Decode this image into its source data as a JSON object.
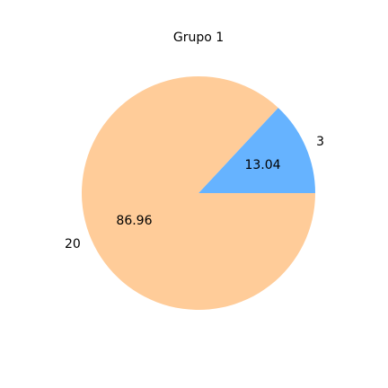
{
  "chart_data": {
    "type": "pie",
    "title": "Grupo 1",
    "categories": [
      "3",
      "20"
    ],
    "values": [
      3,
      20
    ],
    "percent_labels": [
      "13.04",
      "86.96"
    ],
    "colors": [
      "#66b3ff",
      "#ffcc99"
    ],
    "start_angle_deg": 0,
    "direction": "counterclockwise"
  }
}
